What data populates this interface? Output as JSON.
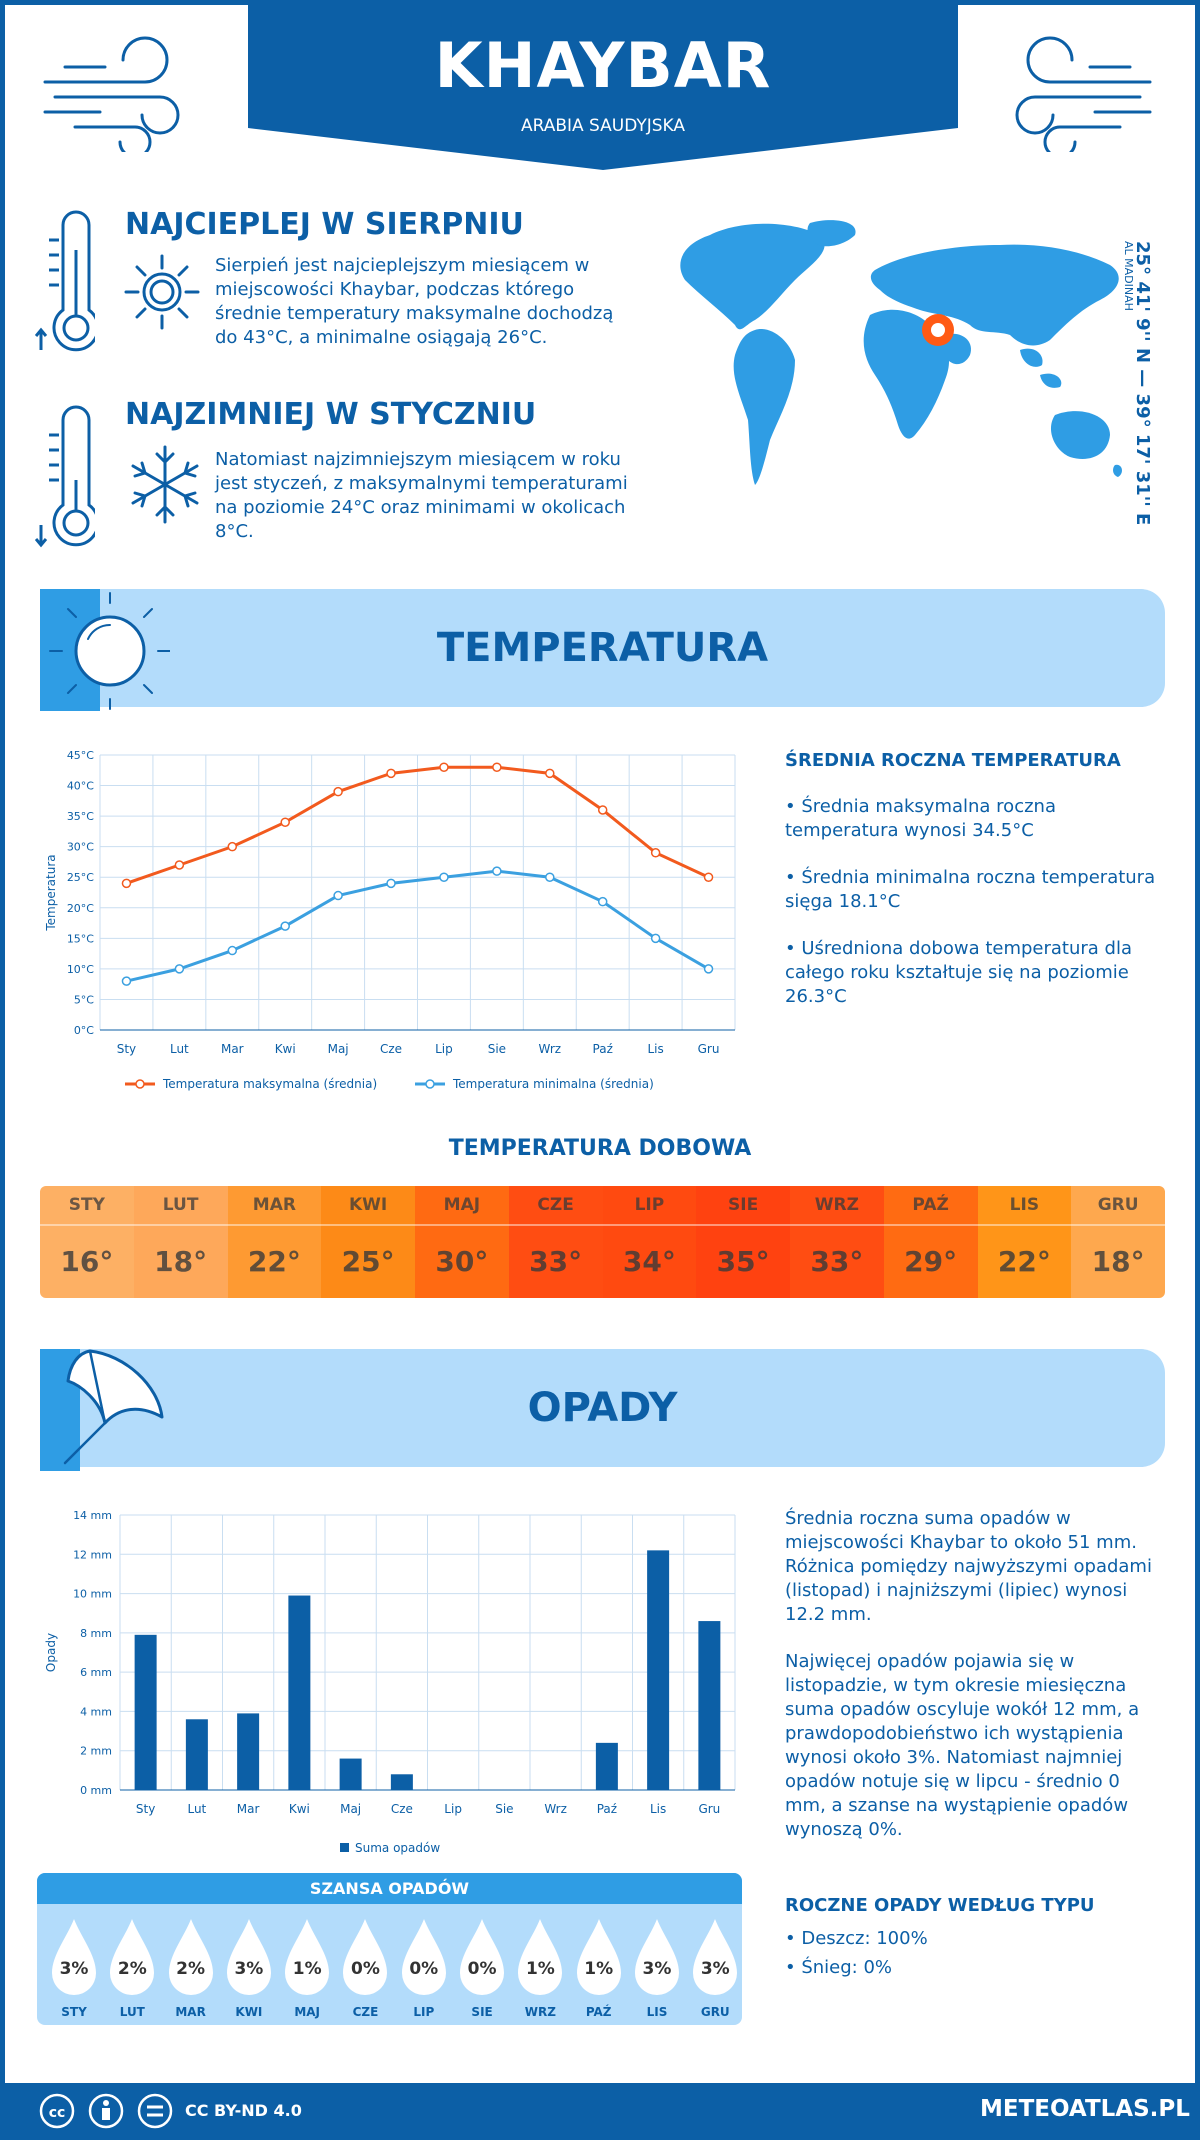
{
  "header": {
    "city": "KHAYBAR",
    "country": "ARABIA SAUDYJSKA"
  },
  "hottest": {
    "title": "NAJCIEPLEJ W SIERPNIU",
    "text": "Sierpień jest najcieplejszym miesiącem w miejscowości Khaybar, podczas którego średnie temperatury maksymalne dochodzą do 43°C, a minimalne osiągają 26°C."
  },
  "coldest": {
    "title": "NAJZIMNIEJ W STYCZNIU",
    "text": "Natomiast najzimniejszym miesiącem w roku jest styczeń, z maksymalnymi temperaturami na poziomie 24°C oraz minimami w okolicach 8°C."
  },
  "location": {
    "coords": "25° 41' 9'' N — 39° 17' 31'' E",
    "region": "AL MADINAH"
  },
  "temperature_section": {
    "title": "TEMPERATURA",
    "summary_title": "ŚREDNIA ROCZNA TEMPERATURA",
    "bullets": [
      "• Średnia maksymalna roczna temperatura wynosi 34.5°C",
      "• Średnia minimalna roczna temperatura sięga 18.1°C",
      "• Uśredniona dobowa temperatura dla całego roku kształtuje się na poziomie 26.3°C"
    ]
  },
  "daily": {
    "title": "TEMPERATURA DOBOWA",
    "months": [
      "STY",
      "LUT",
      "MAR",
      "KWI",
      "MAJ",
      "CZE",
      "LIP",
      "SIE",
      "WRZ",
      "PAŹ",
      "LIS",
      "GRU"
    ],
    "values": [
      "16°",
      "18°",
      "22°",
      "25°",
      "30°",
      "33°",
      "34°",
      "35°",
      "33°",
      "29°",
      "22°",
      "18°"
    ],
    "colors": [
      "#fdb064",
      "#fea85a",
      "#fe9a32",
      "#fd8a17",
      "#ff6a12",
      "#ff4d12",
      "#ff4a10",
      "#ff4210",
      "#ff4d12",
      "#ff6b12",
      "#ff9518",
      "#fea84e"
    ]
  },
  "precip_section": {
    "title": "OPADY",
    "text1": "Średnia roczna suma opadów w miejscowości Khaybar to około 51 mm. Różnica pomiędzy najwyższymi opadami (listopad) i najniższymi (lipiec) wynosi 12.2 mm.",
    "text2": "Najwięcej opadów pojawia się w listopadzie, w tym okresie miesięczna suma opadów oscyluje wokół 12 mm, a prawdopodobieństwo ich wystąpienia wynosi około 3%. Natomiast najmniej opadów notuje się w lipcu - średnio 0 mm, a szanse na wystąpienie opadów wynoszą 0%.",
    "type_title": "ROCZNE OPADY WEDŁUG TYPU",
    "types": [
      "• Deszcz: 100%",
      "• Śnieg: 0%"
    ]
  },
  "chance": {
    "title": "SZANSA OPADÓW",
    "months": [
      "STY",
      "LUT",
      "MAR",
      "KWI",
      "MAJ",
      "CZE",
      "LIP",
      "SIE",
      "WRZ",
      "PAŹ",
      "LIS",
      "GRU"
    ],
    "values": [
      "3%",
      "2%",
      "2%",
      "3%",
      "1%",
      "0%",
      "0%",
      "0%",
      "1%",
      "1%",
      "3%",
      "3%"
    ]
  },
  "chart_data": [
    {
      "type": "line",
      "categories": [
        "Sty",
        "Lut",
        "Mar",
        "Kwi",
        "Maj",
        "Cze",
        "Lip",
        "Sie",
        "Wrz",
        "Paź",
        "Lis",
        "Gru"
      ],
      "series": [
        {
          "name": "Temperatura maksymalna (średnia)",
          "values": [
            24,
            27,
            30,
            34,
            39,
            42,
            43,
            43,
            42,
            36,
            29,
            25
          ],
          "color": "#f25a1e"
        },
        {
          "name": "Temperatura minimalna (średnia)",
          "values": [
            8,
            10,
            13,
            17,
            22,
            24,
            25,
            26,
            25,
            21,
            15,
            10
          ],
          "color": "#3ba0e0"
        }
      ],
      "ylabel": "Temperatura",
      "yticks": [
        "0°C",
        "5°C",
        "10°C",
        "15°C",
        "20°C",
        "25°C",
        "30°C",
        "35°C",
        "40°C",
        "45°C"
      ],
      "ylim": [
        0,
        45
      ],
      "grid": true,
      "legend": "bottom"
    },
    {
      "type": "bar",
      "categories": [
        "Sty",
        "Lut",
        "Mar",
        "Kwi",
        "Maj",
        "Cze",
        "Lip",
        "Sie",
        "Wrz",
        "Paź",
        "Lis",
        "Gru"
      ],
      "series": [
        {
          "name": "Suma opadów",
          "values": [
            7.9,
            3.6,
            3.9,
            9.9,
            1.6,
            0.8,
            0,
            0,
            0,
            2.4,
            12.2,
            8.6
          ],
          "color": "#0c5fa6"
        }
      ],
      "ylabel": "Opady",
      "yticks": [
        "0 mm",
        "2 mm",
        "4 mm",
        "6 mm",
        "8 mm",
        "10 mm",
        "12 mm",
        "14 mm"
      ],
      "ylim": [
        0,
        14
      ],
      "grid": true,
      "legend": "bottom"
    }
  ],
  "footer": {
    "license": "CC BY-ND 4.0",
    "site": "METEOATLAS.PL"
  }
}
